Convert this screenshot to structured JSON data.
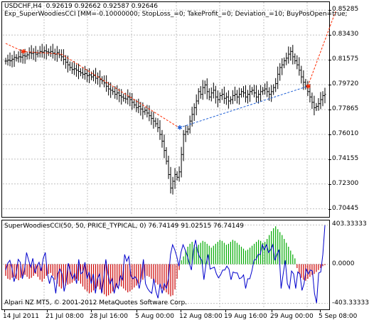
{
  "main": {
    "header": {
      "symbol": "USDCHF,H4",
      "quote": "0.92619 0.92662 0.92587 0.92646",
      "ea": "Exp_SuperWoodiesCCI [MM=-0.10000000; StopLoss_=0; TakeProfit_=0; Deviation_=10; BuyPosOpen=true;"
    },
    "y_labels": [
      "0.85285",
      "0.83430",
      "0.81575",
      "0.79720",
      "0.77865",
      "0.76010",
      "0.74155",
      "0.72300",
      "0.70445"
    ]
  },
  "indicator": {
    "title": "SuperWoodiesCCI(50, 50, PRICE_TYPICAL, 0) 76.74149 91.02515 76.74149",
    "y_labels": [
      "403.33333",
      "0.0000",
      "-403.33333"
    ],
    "footer": "Alpari NZ MT5, © 2001-2012 MetaQuotes Software Corp."
  },
  "x_labels": [
    "14 Jul 2011",
    "21 Jul 08:00",
    "28 Jul 16:00",
    "5 Aug 00:00",
    "12 Aug 08:00",
    "19 Aug 16:00",
    "29 Aug 00:00",
    "5 Sep 08:00"
  ],
  "colors": {
    "bars": "#000000",
    "grid": "#c0c0c0",
    "sell_line": "#ff2a00",
    "buy_line": "#1e5fd6",
    "cci_line": "#0000cc",
    "hist_up": "#00aa00",
    "hist_down": "#cc0000"
  },
  "chart_data": [
    {
      "type": "ohlc",
      "pane": "price",
      "y_ticks": [
        0.85285,
        0.8343,
        0.81575,
        0.7972,
        0.77865,
        0.7601,
        0.74155,
        0.723,
        0.70445
      ],
      "close": [
        0.8148,
        0.8155,
        0.815,
        0.8162,
        0.8175,
        0.817,
        0.818,
        0.8178,
        0.819,
        0.8185,
        0.8195,
        0.821,
        0.8205,
        0.8212,
        0.82,
        0.8208,
        0.822,
        0.8215,
        0.8225,
        0.8218,
        0.8212,
        0.822,
        0.8208,
        0.82,
        0.8212,
        0.8195,
        0.818,
        0.816,
        0.814,
        0.812,
        0.81,
        0.8085,
        0.809,
        0.808,
        0.807,
        0.806,
        0.805,
        0.8055,
        0.804,
        0.8045,
        0.803,
        0.804,
        0.802,
        0.803,
        0.801,
        0.8,
        0.7985,
        0.796,
        0.794,
        0.793,
        0.792,
        0.79,
        0.791,
        0.789,
        0.788,
        0.787,
        0.7865,
        0.788,
        0.786,
        0.784,
        0.782,
        0.78,
        0.781,
        0.779,
        0.777,
        0.778,
        0.776,
        0.774,
        0.772,
        0.77,
        0.768,
        0.765,
        0.76,
        0.755,
        0.748,
        0.74,
        0.73,
        0.72,
        0.725,
        0.73,
        0.728,
        0.732,
        0.745,
        0.76,
        0.762,
        0.764,
        0.77,
        0.775,
        0.78,
        0.785,
        0.792,
        0.79,
        0.795,
        0.797,
        0.792,
        0.788,
        0.791,
        0.793,
        0.788,
        0.786,
        0.789,
        0.79,
        0.787,
        0.788,
        0.785,
        0.786,
        0.789,
        0.79,
        0.788,
        0.79,
        0.792,
        0.791,
        0.788,
        0.79,
        0.792,
        0.793,
        0.791,
        0.788,
        0.79,
        0.792,
        0.793,
        0.794,
        0.792,
        0.79,
        0.792,
        0.795,
        0.798,
        0.805,
        0.81,
        0.812,
        0.815,
        0.817,
        0.82,
        0.822,
        0.818,
        0.815,
        0.812,
        0.808,
        0.803,
        0.799,
        0.796,
        0.792,
        0.788,
        0.784,
        0.78,
        0.781,
        0.783,
        0.786,
        0.789,
        0.79
      ]
    },
    {
      "type": "line",
      "pane": "price",
      "name": "sell",
      "x_index": [
        0,
        8,
        26,
        81
      ],
      "y": [
        0.828,
        0.822,
        0.82,
        0.765
      ]
    },
    {
      "type": "line",
      "pane": "price",
      "name": "buy",
      "x_index": [
        81,
        141
      ],
      "y": [
        0.765,
        0.796
      ]
    },
    {
      "type": "line",
      "pane": "price",
      "name": "sell2",
      "x_index": [
        141,
        154
      ],
      "y": [
        0.796,
        0.852
      ]
    },
    {
      "type": "bar+line",
      "pane": "indicator",
      "y_ticks": [
        403.33333,
        0,
        -403.33333
      ],
      "histogram": [
        -120,
        -150,
        -160,
        -140,
        -130,
        -150,
        -165,
        -140,
        -120,
        -110,
        -130,
        -150,
        -140,
        -120,
        -100,
        -130,
        -160,
        -180,
        -150,
        -120,
        -100,
        -90,
        -120,
        -160,
        -200,
        -230,
        -250,
        -240,
        -220,
        -210,
        -200,
        -190,
        -170,
        -150,
        -170,
        -200,
        -230,
        -260,
        -280,
        -300,
        -290,
        -270,
        -250,
        -230,
        -260,
        -290,
        -310,
        -330,
        -320,
        -300,
        -280,
        -260,
        -240,
        -220,
        -230,
        -250,
        -270,
        -290,
        -280,
        -260,
        -240,
        -220,
        -200,
        -180,
        -160,
        -140,
        -120,
        -130,
        -150,
        -170,
        -190,
        -210,
        -230,
        -250,
        -270,
        -290,
        -310,
        -330,
        -320,
        -260,
        -150,
        -60,
        40,
        80,
        140,
        180,
        210,
        230,
        200,
        180,
        200,
        220,
        240,
        230,
        210,
        190,
        170,
        190,
        210,
        230,
        250,
        240,
        220,
        200,
        210,
        230,
        250,
        240,
        220,
        200,
        180,
        160,
        140,
        150,
        170,
        190,
        210,
        230,
        250,
        240,
        220,
        230,
        260,
        300,
        340,
        370,
        390,
        360,
        330,
        300,
        260,
        220,
        180,
        140,
        100,
        60,
        -40,
        -100,
        -140,
        -160,
        -170,
        -150,
        -130,
        -110,
        -100,
        -80,
        -60,
        -40,
        -20,
        -10
      ],
      "cci": [
        -60,
        10,
        40,
        -40,
        -180,
        -100,
        50,
        20,
        -150,
        -60,
        120,
        40,
        -30,
        60,
        -90,
        -20,
        20,
        -70,
        60,
        120,
        -100,
        -200,
        -120,
        -150,
        -300,
        -100,
        -50,
        -100,
        -280,
        -180,
        10,
        -80,
        -150,
        -100,
        -200,
        50,
        -100,
        -80,
        20,
        -150,
        -80,
        -200,
        -100,
        -300,
        -150,
        -100,
        -300,
        -150,
        50,
        -100,
        -200,
        -150,
        -300,
        -200,
        -250,
        -120,
        -160,
        100,
        30,
        80,
        -120,
        -150,
        -130,
        -160,
        -250,
        -130,
        50,
        -200,
        -250,
        -280,
        -300,
        -150,
        -280,
        -350,
        -200,
        -300,
        -200,
        -250,
        -150,
        100,
        200,
        150,
        80,
        -20,
        120,
        200,
        150,
        90,
        10,
        -60,
        140,
        250,
        130,
        70,
        40,
        -160,
        0,
        100,
        -50,
        -40,
        -30,
        -100,
        -140,
        -110,
        -60,
        -60,
        -20,
        -50,
        -160,
        -80,
        -90,
        -90,
        -150,
        -140,
        -110,
        -250,
        -150,
        -150,
        -70,
        40,
        50,
        100,
        100,
        200,
        150,
        200,
        120,
        150,
        200,
        40,
        100,
        150,
        -250,
        -100,
        40,
        -200,
        -250,
        -70,
        -100,
        -250,
        -80,
        -100,
        -270,
        -200,
        -50,
        -100,
        -60,
        -70,
        -300,
        -400,
        -90,
        -80,
        100,
        400
      ]
    }
  ]
}
